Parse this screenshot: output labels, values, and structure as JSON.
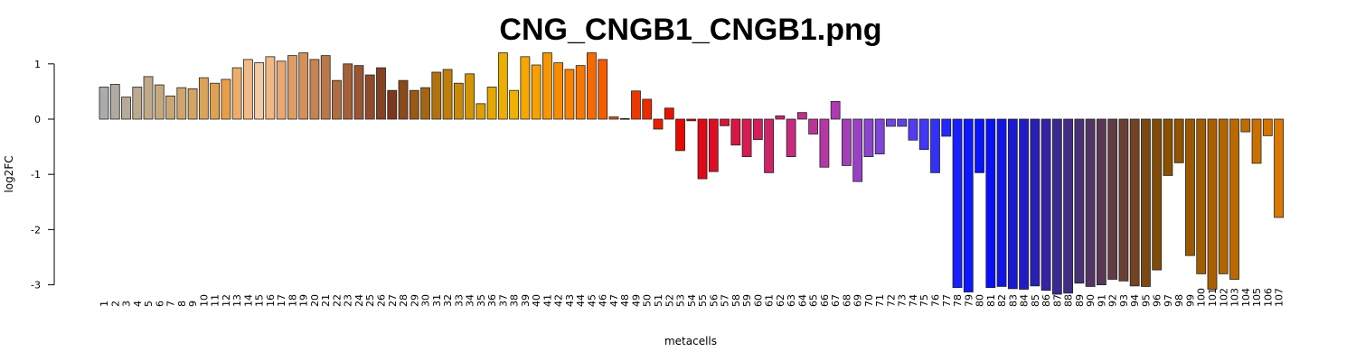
{
  "chart_data": {
    "type": "bar",
    "title": "CNG_CNGB1_CNGB1.png",
    "xlabel": "metacells",
    "ylabel": "log2FC",
    "ylim": [
      -3.2,
      1.2
    ],
    "yticks": [
      "-3",
      "-2",
      "-1",
      "0",
      "1"
    ],
    "grid": false,
    "legend": "none",
    "categories": [
      "1",
      "2",
      "3",
      "4",
      "5",
      "6",
      "7",
      "8",
      "9",
      "10",
      "11",
      "12",
      "13",
      "14",
      "15",
      "16",
      "17",
      "18",
      "19",
      "20",
      "21",
      "22",
      "23",
      "24",
      "25",
      "26",
      "27",
      "28",
      "29",
      "30",
      "31",
      "32",
      "33",
      "34",
      "35",
      "36",
      "37",
      "38",
      "39",
      "40",
      "41",
      "42",
      "43",
      "44",
      "45",
      "46",
      "47",
      "48",
      "49",
      "50",
      "51",
      "52",
      "53",
      "54",
      "55",
      "56",
      "57",
      "58",
      "59",
      "60",
      "61",
      "62",
      "63",
      "64",
      "65",
      "66",
      "67",
      "68",
      "69",
      "70",
      "71",
      "72",
      "73",
      "74",
      "75",
      "76",
      "77",
      "78",
      "79",
      "80",
      "81",
      "82",
      "83",
      "84",
      "85",
      "86",
      "87",
      "88",
      "89",
      "90",
      "91",
      "92",
      "93",
      "94",
      "95",
      "96",
      "97",
      "98",
      "99",
      "100",
      "101",
      "102",
      "103",
      "104",
      "105",
      "106",
      "107"
    ],
    "values": [
      0.58,
      0.63,
      0.4,
      0.58,
      0.77,
      0.62,
      0.42,
      0.57,
      0.55,
      0.75,
      0.65,
      0.72,
      0.93,
      1.08,
      1.02,
      1.13,
      1.05,
      1.15,
      1.2,
      1.08,
      1.15,
      0.7,
      1.0,
      0.97,
      0.8,
      0.93,
      0.52,
      0.7,
      0.52,
      0.57,
      0.85,
      0.9,
      0.65,
      0.82,
      0.28,
      0.58,
      1.2,
      0.52,
      1.13,
      0.98,
      1.2,
      1.02,
      0.9,
      0.97,
      1.2,
      1.08,
      0.04,
      0.01,
      0.51,
      0.36,
      -0.18,
      0.2,
      -0.57,
      -0.03,
      -1.08,
      -0.95,
      -0.12,
      -0.47,
      -0.68,
      -0.37,
      -0.97,
      0.06,
      -0.68,
      0.12,
      -0.27,
      -0.87,
      0.32,
      -0.84,
      -1.13,
      -0.68,
      -0.63,
      -0.13,
      -0.13,
      -0.38,
      -0.55,
      -0.97,
      -0.31,
      -3.05,
      -3.13,
      -0.97,
      -3.05,
      -3.03,
      -3.07,
      -3.08,
      -3.02,
      -3.1,
      -3.17,
      -3.15,
      -2.97,
      -3.03,
      -3.0,
      -2.9,
      -2.93,
      -3.02,
      -3.03,
      -2.73,
      -1.02,
      -0.79,
      -2.47,
      -2.8,
      -3.08,
      -2.8,
      -2.9,
      -0.23,
      -0.8,
      -0.3,
      -1.78
    ],
    "colors": [
      "#ababab",
      "#b0aba2",
      "#b5aa99",
      "#bbaa90",
      "#c0a987",
      "#c5a87e",
      "#caa675",
      "#d0a56c",
      "#d5a463",
      "#dba25a",
      "#e0a152",
      "#e69f49",
      "#ebad68",
      "#f0bb87",
      "#f5c8a4",
      "#f0b882",
      "#e8a870",
      "#dd9c64",
      "#d2905a",
      "#c68452",
      "#bb784a",
      "#b06c42",
      "#a5603a",
      "#9b5533",
      "#914b2b",
      "#874125",
      "#7d371e",
      "#8a4a1a",
      "#985816",
      "#a56512",
      "#b1720e",
      "#bd7e0a",
      "#c98a07",
      "#d49504",
      "#de9f02",
      "#e6a700",
      "#edae00",
      "#f2b000",
      "#f5a800",
      "#f7a000",
      "#f89600",
      "#f88c00",
      "#f88200",
      "#f77700",
      "#f56a00",
      "#f35d00",
      "#f05000",
      "#ee4300",
      "#ec3700",
      "#ea2b00",
      "#e82000",
      "#e61500",
      "#e40b00",
      "#e30500",
      "#e10815",
      "#de0d26",
      "#db1235",
      "#d81643",
      "#d51b50",
      "#d21f5c",
      "#ce2368",
      "#ca2774",
      "#c62b80",
      "#c22f8c",
      "#bc3398",
      "#b537a4",
      "#ad3aaf",
      "#a43eb9",
      "#9941c4",
      "#8c44cf",
      "#7e45d8",
      "#6f44e1",
      "#6041e8",
      "#513def",
      "#4237f4",
      "#3330f8",
      "#2528fb",
      "#1820fd",
      "#0d18ff",
      "#0812ff",
      "#0a10f5",
      "#1214e5",
      "#1a18d5",
      "#221cc5",
      "#2a20b5",
      "#3224a5",
      "#3a2895",
      "#422c85",
      "#4a3075",
      "#523465",
      "#5a3855",
      "#623c45",
      "#6a4035",
      "#724425",
      "#7a4815",
      "#824c08",
      "#8a5000",
      "#925400",
      "#9a5800",
      "#a25c00",
      "#aa6000",
      "#b26400",
      "#ba6800",
      "#c26c00",
      "#ca7000",
      "#d27400",
      "#da7800"
    ]
  }
}
